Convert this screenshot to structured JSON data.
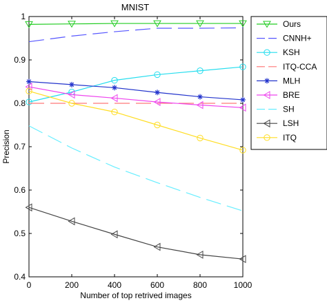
{
  "chart_data": {
    "type": "line",
    "title": "MNIST",
    "xlabel": "Number of top retrived images",
    "ylabel": "Precision",
    "xlim": [
      0,
      1000
    ],
    "ylim": [
      0.4,
      1.0
    ],
    "xticks": [
      "0",
      "200",
      "400",
      "600",
      "800",
      "1000"
    ],
    "yticks": [
      "0.4",
      "0.5",
      "0.6",
      "0.7",
      "0.8",
      "0.9",
      "1"
    ],
    "grid": false,
    "legend_position": "outside-right",
    "x": [
      0,
      200,
      400,
      600,
      800,
      1000
    ],
    "series": [
      {
        "name": "Ours",
        "color": "#22cc22",
        "dash": "solid",
        "marker": "triangle-down",
        "values": [
          0.982,
          0.983,
          0.984,
          0.984,
          0.984,
          0.984
        ]
      },
      {
        "name": "CNNH+",
        "color": "#5555ff",
        "dash": "long-dash",
        "marker": "none",
        "values": [
          0.942,
          0.955,
          0.965,
          0.973,
          0.973,
          0.974
        ]
      },
      {
        "name": "KSH",
        "color": "#22ddee",
        "dash": "solid",
        "marker": "circle",
        "values": [
          0.803,
          0.826,
          0.853,
          0.866,
          0.875,
          0.884
        ]
      },
      {
        "name": "ITQ-CCA",
        "color": "#ff7777",
        "dash": "long-dash",
        "marker": "none",
        "values": [
          0.8,
          0.8,
          0.8,
          0.8,
          0.8,
          0.8
        ]
      },
      {
        "name": "MLH",
        "color": "#2233cc",
        "dash": "solid",
        "marker": "star",
        "values": [
          0.85,
          0.843,
          0.836,
          0.825,
          0.815,
          0.808
        ]
      },
      {
        "name": "BRE",
        "color": "#ee44ee",
        "dash": "solid",
        "marker": "triangle-left",
        "values": [
          0.838,
          0.82,
          0.812,
          0.803,
          0.796,
          0.79
        ]
      },
      {
        "name": "SH",
        "color": "#66eeff",
        "dash": "long-dash",
        "marker": "none",
        "values": [
          0.748,
          0.697,
          0.653,
          0.617,
          0.583,
          0.552
        ]
      },
      {
        "name": "LSH",
        "color": "#444444",
        "dash": "solid",
        "marker": "triangle-left",
        "values": [
          0.56,
          0.528,
          0.498,
          0.469,
          0.451,
          0.441
        ]
      },
      {
        "name": "ITQ",
        "color": "#ffdd22",
        "dash": "solid",
        "marker": "circle",
        "values": [
          0.828,
          0.8,
          0.78,
          0.75,
          0.72,
          0.692
        ]
      }
    ]
  }
}
